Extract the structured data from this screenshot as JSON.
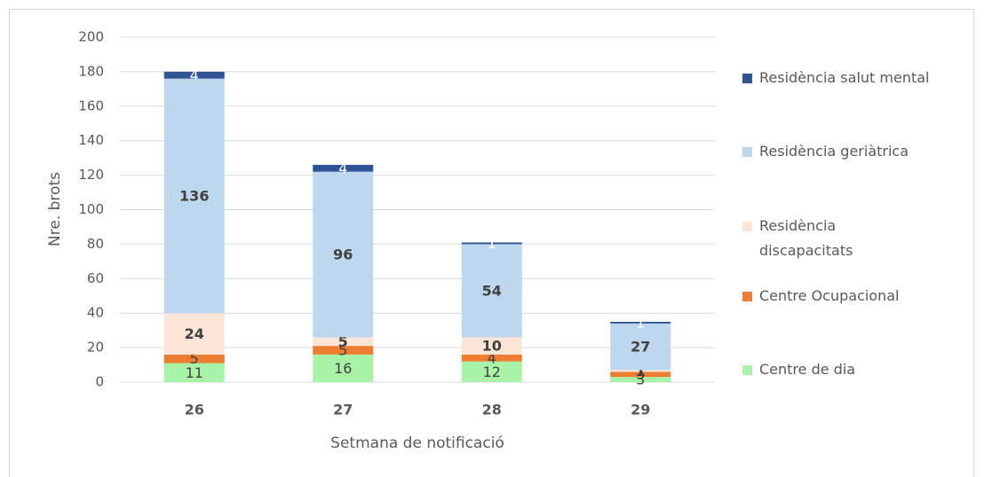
{
  "chart_data": {
    "type": "stacked_bar",
    "xlabel": "Setmana de notificació",
    "ylabel": "Nre. brots",
    "categories": [
      "26",
      "27",
      "28",
      "29"
    ],
    "series": [
      {
        "name": "Centre de dia",
        "color": "#a9f3a9",
        "values": [
          11,
          16,
          12,
          3
        ]
      },
      {
        "name": "Centre Ocupacional",
        "color": "#ed7d31",
        "values": [
          5,
          5,
          4,
          3
        ]
      },
      {
        "name": "Residència discapacitats",
        "color": "#fbe5d6",
        "values": [
          24,
          5,
          10,
          1
        ]
      },
      {
        "name": "Residència geriàtrica",
        "color": "#bdd7ee",
        "values": [
          136,
          96,
          54,
          27
        ]
      },
      {
        "name": "Residència salut mental",
        "color": "#2f5597",
        "values": [
          4,
          4,
          1,
          1
        ]
      }
    ],
    "ylim": [
      0,
      200
    ],
    "yticks": [
      0,
      20,
      40,
      60,
      80,
      100,
      120,
      140,
      160,
      180,
      200
    ],
    "grid": true
  }
}
